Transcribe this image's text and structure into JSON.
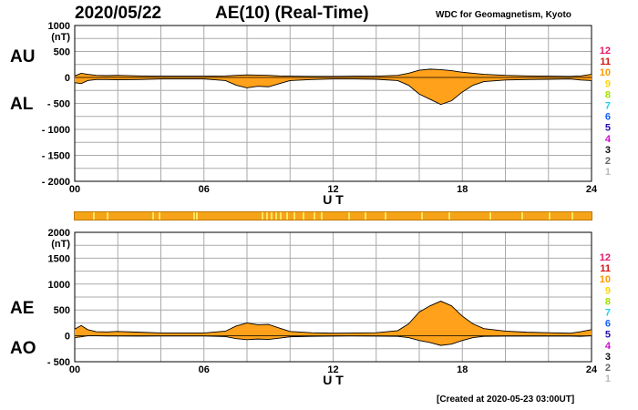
{
  "header": {
    "date": "2020/05/22",
    "title": "AE(10) (Real-Time)",
    "source": "WDC for Geomagnetism, Kyoto"
  },
  "footer": {
    "created": "[Created at 2020-05-23 03:00UT]"
  },
  "stations_legend": [
    {
      "label": "12",
      "color": "#e8186c"
    },
    {
      "label": "11",
      "color": "#d01616"
    },
    {
      "label": "10",
      "color": "#ff9900"
    },
    {
      "label": "9",
      "color": "#ffd400"
    },
    {
      "label": "8",
      "color": "#a0e000"
    },
    {
      "label": "7",
      "color": "#20d0f0"
    },
    {
      "label": "6",
      "color": "#1060ff"
    },
    {
      "label": "5",
      "color": "#2010b0"
    },
    {
      "label": "4",
      "color": "#cc10cc"
    },
    {
      "label": "3",
      "color": "#111111"
    },
    {
      "label": "2",
      "color": "#666666"
    },
    {
      "label": "1",
      "color": "#bbbbbb"
    }
  ],
  "colors": {
    "fill": "#ffa11a",
    "stripe": "#f5a318",
    "stripe_light": "#ffe560",
    "grid": "#aaaaaa"
  },
  "chart_data": [
    {
      "type": "area",
      "title": "AU / AL",
      "series_labels": [
        "AU",
        "AL"
      ],
      "unit_label": "(nT)",
      "ytick_labels": [
        "1000",
        "500",
        "0",
        "- 500",
        "- 1000",
        "- 1500",
        "- 2000"
      ],
      "ylim": [
        -2000,
        1000
      ],
      "xlim": [
        0,
        24
      ],
      "xticks": [
        "00",
        "06",
        "12",
        "18",
        "24"
      ],
      "xlabel": "U T",
      "grid": true,
      "series": [
        {
          "name": "AU",
          "x": [
            0,
            0.3,
            0.6,
            1,
            1.5,
            2,
            3,
            4,
            5,
            6,
            7,
            7.5,
            8,
            8.5,
            9,
            9.5,
            10,
            11,
            12,
            13,
            14,
            15,
            15.5,
            16,
            16.5,
            17,
            17.5,
            18,
            18.5,
            19,
            20,
            21,
            22,
            23,
            23.5,
            24
          ],
          "values": [
            30,
            80,
            60,
            40,
            35,
            40,
            30,
            25,
            25,
            25,
            30,
            40,
            50,
            45,
            40,
            30,
            25,
            20,
            20,
            25,
            25,
            40,
            80,
            140,
            160,
            150,
            130,
            100,
            80,
            60,
            40,
            30,
            25,
            20,
            30,
            60
          ]
        },
        {
          "name": "AL",
          "x": [
            0,
            0.3,
            0.6,
            1,
            1.5,
            2,
            3,
            4,
            5,
            6,
            7,
            7.5,
            8,
            8.5,
            9,
            9.5,
            10,
            11,
            12,
            13,
            14,
            15,
            15.5,
            16,
            16.5,
            17,
            17.5,
            18,
            18.5,
            19,
            20,
            21,
            22,
            23,
            23.5,
            24
          ],
          "values": [
            -100,
            -120,
            -60,
            -40,
            -40,
            -45,
            -40,
            -30,
            -30,
            -30,
            -60,
            -150,
            -200,
            -170,
            -180,
            -120,
            -60,
            -40,
            -30,
            -30,
            -35,
            -60,
            -150,
            -320,
            -420,
            -520,
            -450,
            -280,
            -150,
            -80,
            -50,
            -40,
            -35,
            -30,
            -50,
            -60
          ]
        }
      ]
    },
    {
      "type": "area",
      "title": "AE / AO",
      "series_labels": [
        "AE",
        "AO"
      ],
      "unit_label": "(nT)",
      "ytick_labels": [
        "2000",
        "1500",
        "1000",
        "500",
        "0",
        "- 500"
      ],
      "ylim": [
        -500,
        2000
      ],
      "xlim": [
        0,
        24
      ],
      "xticks": [
        "00",
        "06",
        "12",
        "18",
        "24"
      ],
      "xlabel": "U T",
      "grid": true,
      "series": [
        {
          "name": "AE",
          "x": [
            0,
            0.3,
            0.6,
            1,
            1.5,
            2,
            3,
            4,
            5,
            6,
            7,
            7.5,
            8,
            8.5,
            9,
            9.5,
            10,
            11,
            12,
            13,
            14,
            15,
            15.5,
            16,
            16.5,
            17,
            17.5,
            18,
            18.5,
            19,
            20,
            21,
            22,
            23,
            23.5,
            24
          ],
          "values": [
            130,
            200,
            120,
            80,
            75,
            85,
            70,
            55,
            55,
            55,
            90,
            190,
            250,
            215,
            220,
            150,
            85,
            60,
            50,
            55,
            60,
            100,
            230,
            460,
            580,
            670,
            580,
            380,
            230,
            140,
            90,
            70,
            60,
            50,
            80,
            120
          ]
        },
        {
          "name": "AO",
          "x": [
            0,
            0.3,
            0.6,
            1,
            1.5,
            2,
            3,
            4,
            5,
            6,
            7,
            7.5,
            8,
            8.5,
            9,
            9.5,
            10,
            11,
            12,
            13,
            14,
            15,
            15.5,
            16,
            16.5,
            17,
            17.5,
            18,
            18.5,
            19,
            20,
            21,
            22,
            23,
            23.5,
            24
          ],
          "values": [
            -35,
            -20,
            0,
            0,
            -3,
            -3,
            -5,
            -3,
            -3,
            -3,
            -15,
            -55,
            -75,
            -62,
            -70,
            -45,
            -18,
            -10,
            -5,
            -3,
            -5,
            -10,
            -35,
            -90,
            -130,
            -185,
            -160,
            -90,
            -35,
            -10,
            -5,
            -5,
            -5,
            -5,
            -10,
            0
          ]
        }
      ]
    }
  ]
}
